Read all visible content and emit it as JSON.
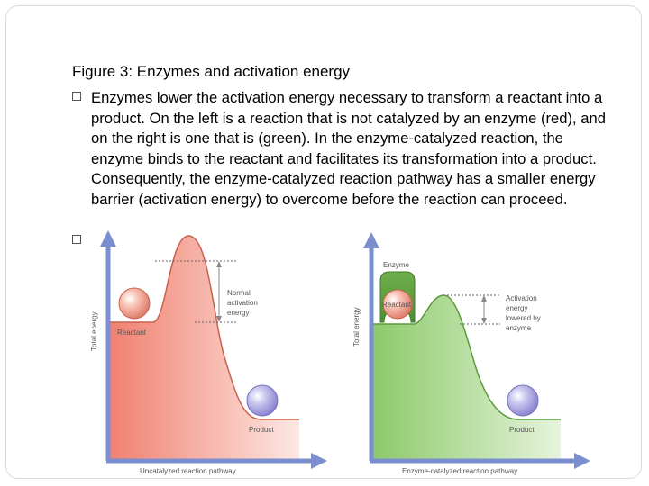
{
  "figure_title": "Figure 3: Enzymes and activation energy",
  "bullet_text": "Enzymes lower the activation energy necessary to transform a reactant into a product. On the left is a reaction that is not catalyzed by an enzyme (red), and on the right is one that is (green). In the enzyme-catalyzed reaction, the enzyme binds to the reactant and facilitates its transformation into a product. Consequently, the enzyme-catalyzed reaction pathway has a smaller energy barrier (activation energy) to overcome before the reaction can proceed.",
  "left_diagram": {
    "y_axis_label": "Total energy",
    "x_axis_label": "Uncatalyzed reaction pathway",
    "reactant_label": "Reactant",
    "product_label": "Product",
    "barrier_label_line1": "Normal",
    "barrier_label_line2": "activation",
    "barrier_label_line3": "energy",
    "fill_color": "#f08070"
  },
  "right_diagram": {
    "y_axis_label": "Total energy",
    "x_axis_label": "Enzyme-catalyzed reaction pathway",
    "enzyme_label": "Enzyme",
    "reactant_label": "Reactant",
    "product_label": "Product",
    "barrier_label_line1": "Activation",
    "barrier_label_line2": "energy",
    "barrier_label_line3": "lowered by",
    "barrier_label_line4": "enzyme",
    "fill_color": "#8cc96a"
  },
  "axis_color": "#7b8fd0"
}
